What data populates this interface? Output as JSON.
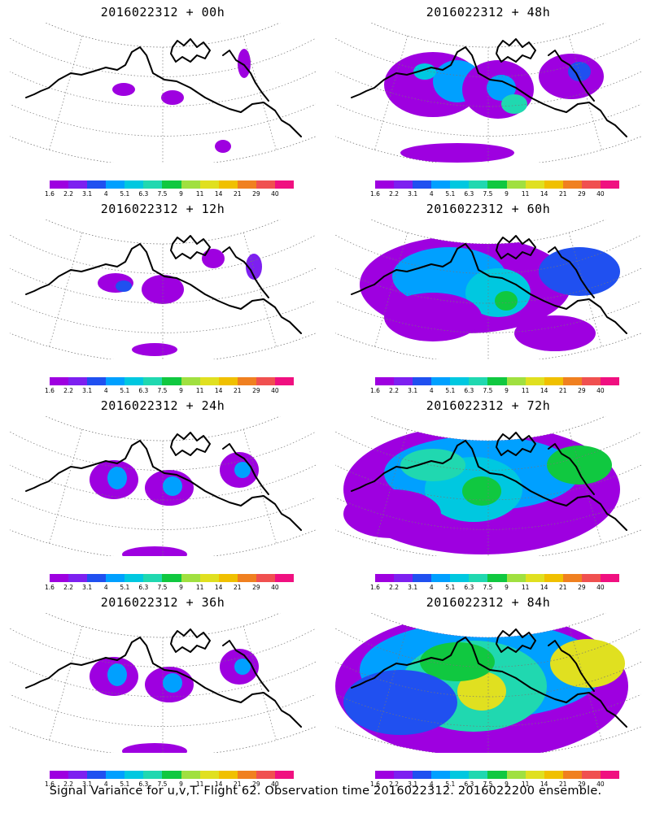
{
  "panels": [
    {
      "id": "p00",
      "title": "2016022312 + 00h",
      "coverage": 1
    },
    {
      "id": "p48",
      "title": "2016022312 + 48h",
      "coverage": 4
    },
    {
      "id": "p12",
      "title": "2016022312 + 12h",
      "coverage": 2
    },
    {
      "id": "p60",
      "title": "2016022312 + 60h",
      "coverage": 5
    },
    {
      "id": "p24",
      "title": "2016022312 + 24h",
      "coverage": 3
    },
    {
      "id": "p72",
      "title": "2016022312 + 72h",
      "coverage": 6
    },
    {
      "id": "p36",
      "title": "2016022312 + 36h",
      "coverage": 3
    },
    {
      "id": "p84",
      "title": "2016022312 + 84h",
      "coverage": 7
    }
  ],
  "colorbar": {
    "labels": [
      "1.6",
      "2.2",
      "3.1",
      "4",
      "5.1",
      "6.3",
      "7.5",
      "9",
      "11",
      "14",
      "21",
      "29",
      "40"
    ],
    "colors": [
      "#9e00e0",
      "#7d20f0",
      "#2050f0",
      "#00a0ff",
      "#00c8e0",
      "#20d8b0",
      "#10c840",
      "#a0e040",
      "#e0e020",
      "#f0c000",
      "#f08020",
      "#f05050",
      "#f01080"
    ]
  },
  "footer": "Signal Variance for u,v,T. Flight 62. Observation time 2016022312. 2016022200 ensemble."
}
